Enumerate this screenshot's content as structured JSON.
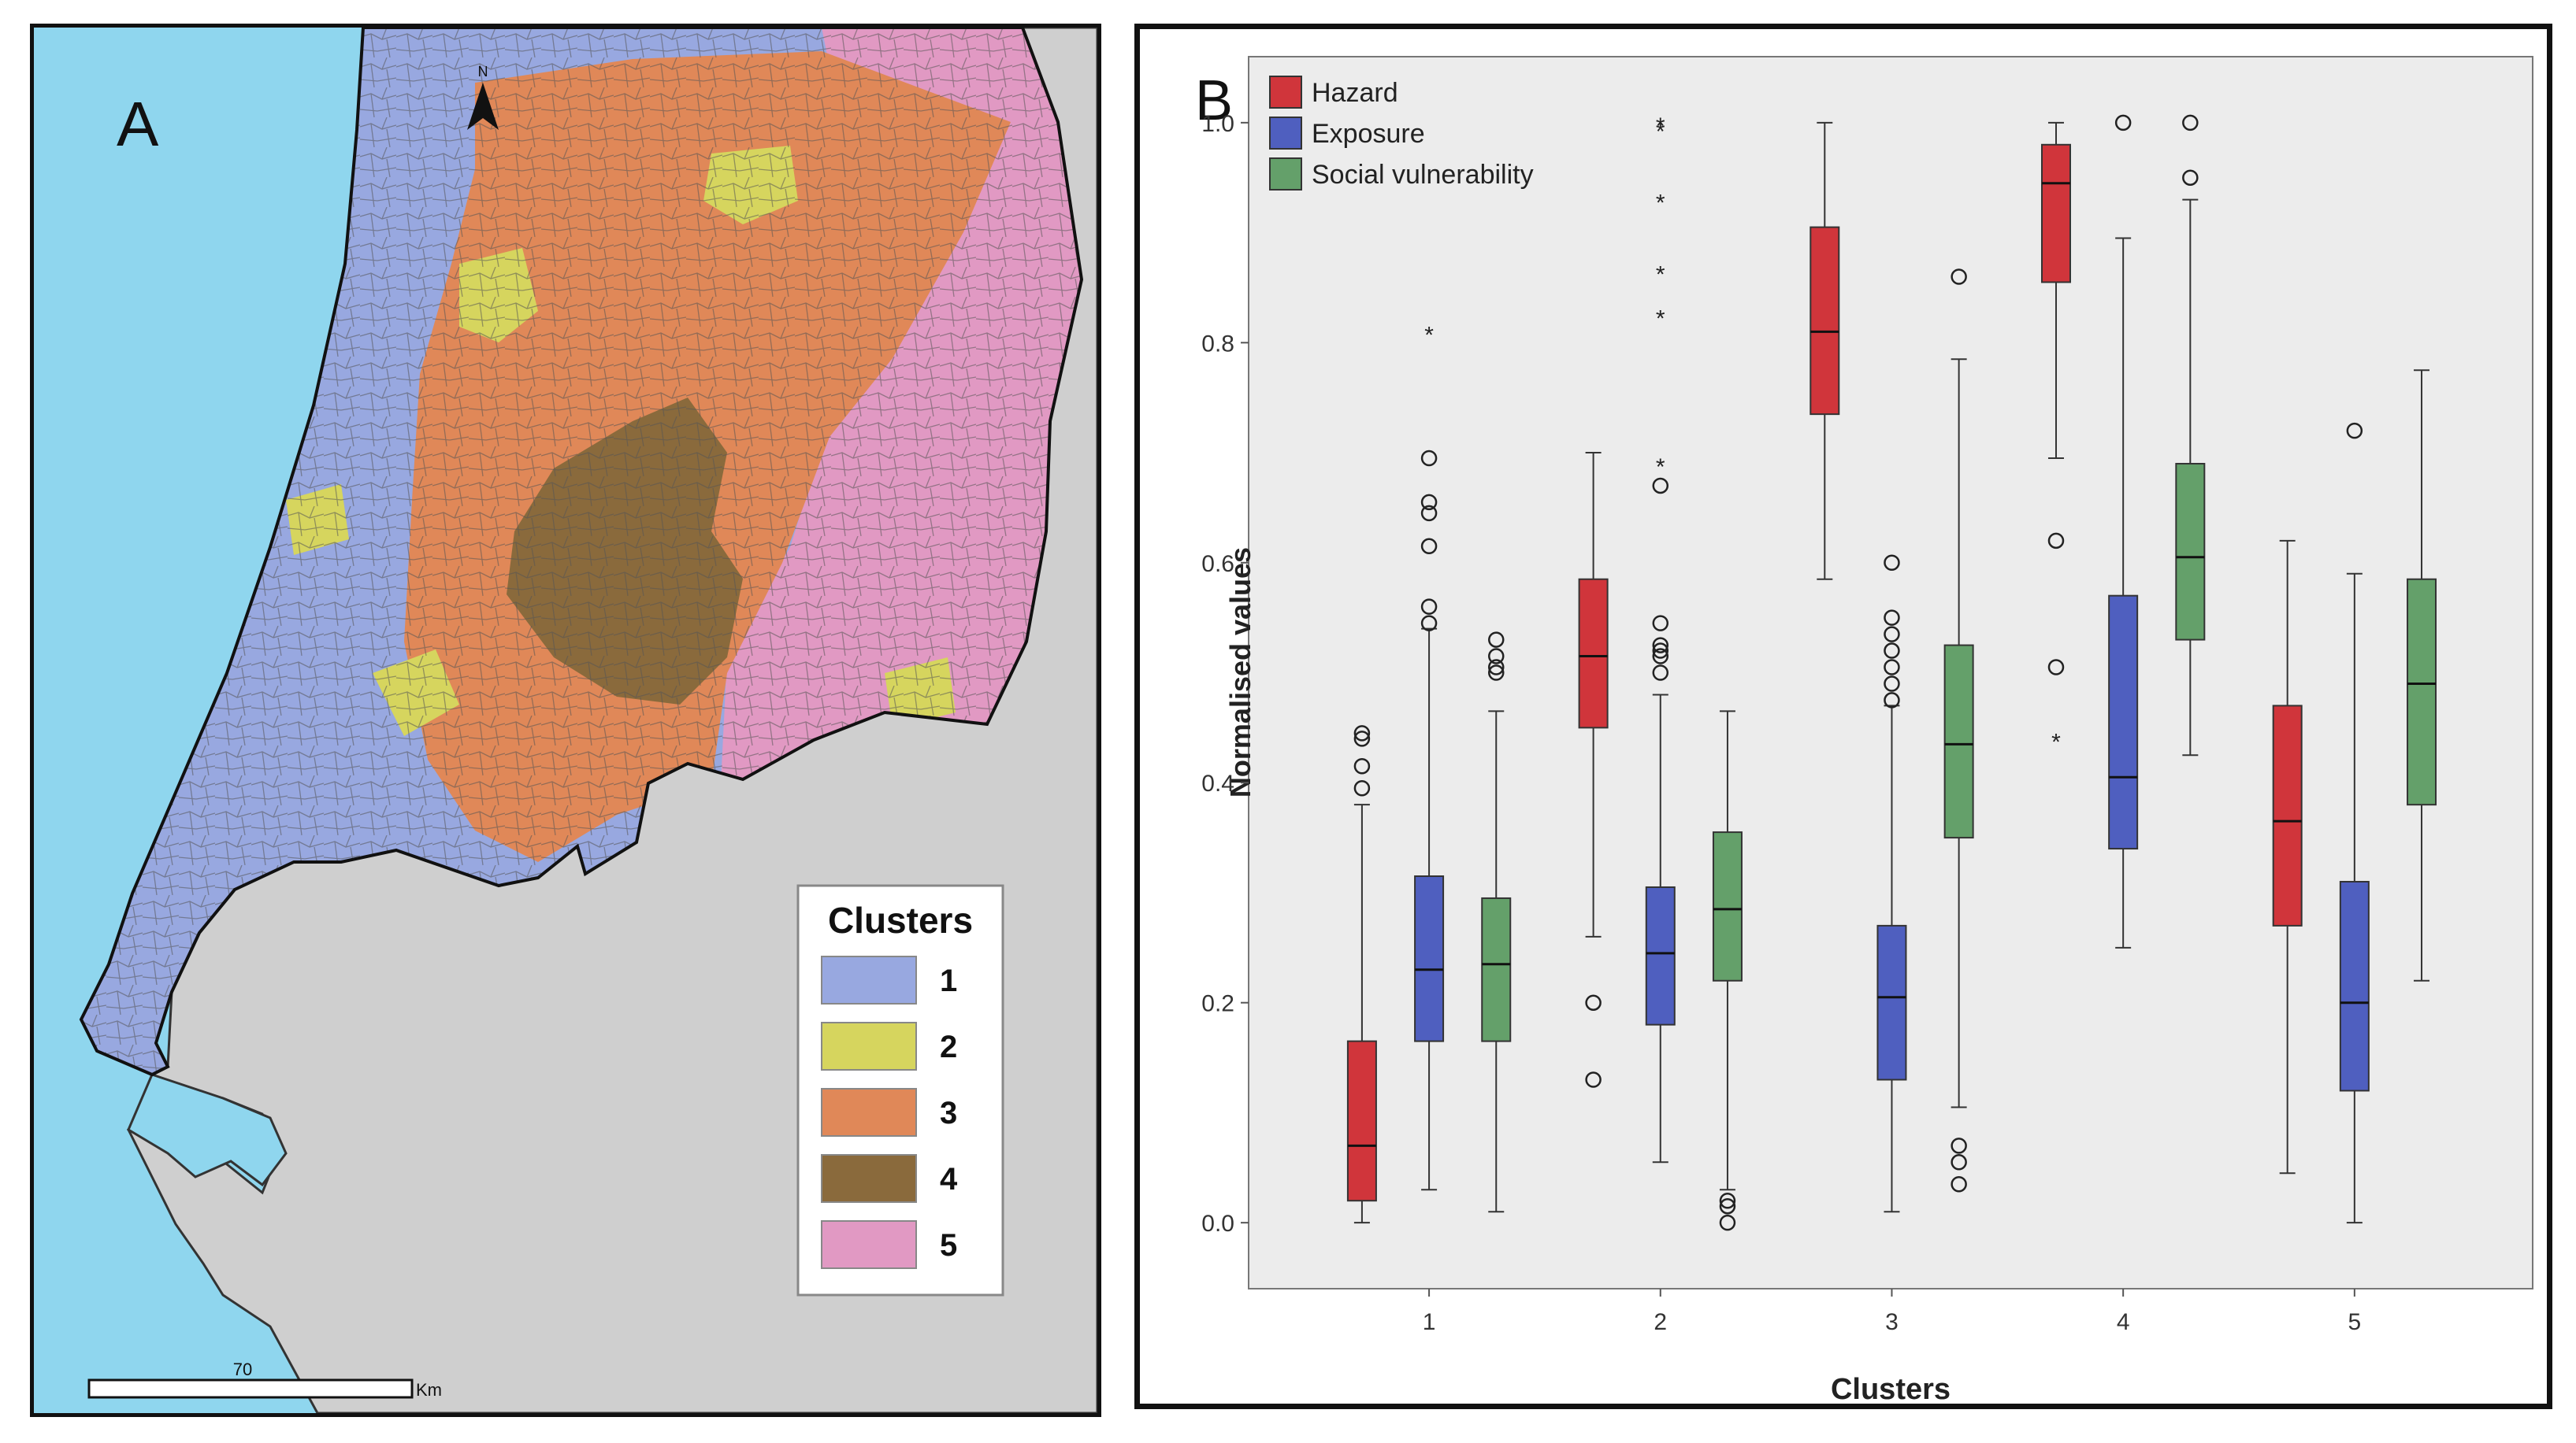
{
  "panel_a": {
    "panel_letter": "A",
    "north_label": "N",
    "scale_value": "70",
    "scale_unit": "Km",
    "legend_title": "Clusters",
    "legend": [
      {
        "label": "1",
        "color": "#98a8e0"
      },
      {
        "label": "2",
        "color": "#d6d55e"
      },
      {
        "label": "3",
        "color": "#e08858"
      },
      {
        "label": "4",
        "color": "#8a6a3c"
      },
      {
        "label": "5",
        "color": "#e199c3"
      }
    ],
    "colors": {
      "sea": "#8fd6ee",
      "land": "#cfcfcf"
    }
  },
  "chart_data": {
    "type": "boxplot",
    "panel_letter": "B",
    "xlabel": "Clusters",
    "ylabel": "Normalised values",
    "ylim": [
      -0.06,
      1.06
    ],
    "yticks": [
      "0.0",
      "0.2",
      "0.4",
      "0.6",
      "0.8",
      "1.0"
    ],
    "categories": [
      "1",
      "2",
      "3",
      "4",
      "5"
    ],
    "legend": "top-left",
    "series": [
      {
        "name": "Hazard",
        "color": "#d0353b",
        "boxes": [
          {
            "min": 0.0,
            "q1": 0.02,
            "median": 0.07,
            "q3": 0.165,
            "max": 0.38,
            "outliers": [
              0.395,
              0.415,
              0.44,
              0.445
            ],
            "extremes": []
          },
          {
            "min": 0.26,
            "q1": 0.45,
            "median": 0.515,
            "q3": 0.585,
            "max": 0.7,
            "outliers": [
              0.13,
              0.2
            ],
            "extremes": []
          },
          {
            "min": 0.585,
            "q1": 0.735,
            "median": 0.81,
            "q3": 0.905,
            "max": 1.0,
            "outliers": [],
            "extremes": []
          },
          {
            "min": 0.695,
            "q1": 0.855,
            "median": 0.945,
            "q3": 0.98,
            "max": 1.0,
            "outliers": [
              0.505,
              0.62
            ],
            "extremes": [
              0.44
            ]
          },
          {
            "min": 0.045,
            "q1": 0.27,
            "median": 0.365,
            "q3": 0.47,
            "max": 0.62,
            "outliers": [],
            "extremes": []
          }
        ]
      },
      {
        "name": "Exposure",
        "color": "#4f5fbf",
        "boxes": [
          {
            "min": 0.03,
            "q1": 0.165,
            "median": 0.23,
            "q3": 0.315,
            "max": 0.54,
            "outliers": [
              0.545,
              0.56,
              0.615,
              0.645,
              0.655,
              0.695
            ],
            "extremes": [
              0.81
            ]
          },
          {
            "min": 0.055,
            "q1": 0.18,
            "median": 0.245,
            "q3": 0.305,
            "max": 0.48,
            "outliers": [
              0.5,
              0.515,
              0.52,
              0.525,
              0.545,
              0.67
            ],
            "extremes": [
              0.69,
              0.825,
              0.865,
              0.93,
              0.995,
              1.0
            ]
          },
          {
            "min": 0.01,
            "q1": 0.13,
            "median": 0.205,
            "q3": 0.27,
            "max": 0.47,
            "outliers": [
              0.475,
              0.49,
              0.505,
              0.52,
              0.535,
              0.55,
              0.6
            ],
            "extremes": []
          },
          {
            "min": 0.25,
            "q1": 0.34,
            "median": 0.405,
            "q3": 0.57,
            "max": 0.895,
            "outliers": [
              1.0
            ],
            "extremes": []
          },
          {
            "min": 0.0,
            "q1": 0.12,
            "median": 0.2,
            "q3": 0.31,
            "max": 0.59,
            "outliers": [
              0.72
            ],
            "extremes": []
          }
        ]
      },
      {
        "name": "Social vulnerability",
        "color": "#64a06a",
        "boxes": [
          {
            "min": 0.01,
            "q1": 0.165,
            "median": 0.235,
            "q3": 0.295,
            "max": 0.465,
            "outliers": [
              0.5,
              0.505,
              0.515,
              0.53
            ],
            "extremes": []
          },
          {
            "min": 0.03,
            "q1": 0.22,
            "median": 0.285,
            "q3": 0.355,
            "max": 0.465,
            "outliers": [
              0.0,
              0.015,
              0.02
            ],
            "extremes": []
          },
          {
            "min": 0.105,
            "q1": 0.35,
            "median": 0.435,
            "q3": 0.525,
            "max": 0.785,
            "outliers": [
              0.035,
              0.055,
              0.07,
              0.86
            ],
            "extremes": []
          },
          {
            "min": 0.425,
            "q1": 0.53,
            "median": 0.605,
            "q3": 0.69,
            "max": 0.93,
            "outliers": [
              0.95,
              1.0
            ],
            "extremes": []
          },
          {
            "min": 0.22,
            "q1": 0.38,
            "median": 0.49,
            "q3": 0.585,
            "max": 0.775,
            "outliers": [],
            "extremes": []
          }
        ]
      }
    ]
  }
}
